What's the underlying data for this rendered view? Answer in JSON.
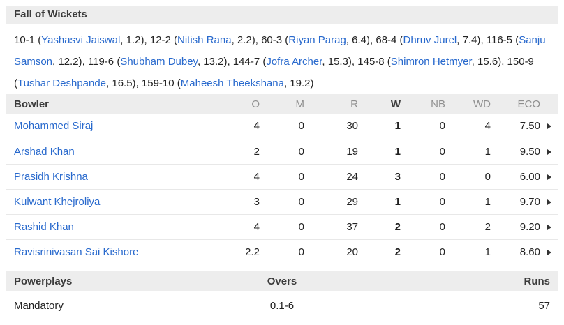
{
  "colors": {
    "link_blue": "#2869cd",
    "section_bar_bg": "#ededed",
    "header_text": "#3b3b3b",
    "muted_column_header": "#8f8f8f",
    "body_text": "#222222",
    "row_separator": "#e8e8e8"
  },
  "icons": {
    "row_expand": "right-triangle-icon"
  },
  "fall_of_wickets": {
    "title": "Fall of Wickets",
    "entries": [
      {
        "score": "10-1",
        "player": "Yashasvi Jaiswal",
        "over": "1.2"
      },
      {
        "score": "12-2",
        "player": "Nitish Rana",
        "over": "2.2"
      },
      {
        "score": "60-3",
        "player": "Riyan Parag",
        "over": "6.4"
      },
      {
        "score": "68-4",
        "player": "Dhruv Jurel",
        "over": "7.4"
      },
      {
        "score": "116-5",
        "player": "Sanju Samson",
        "over": "12.2"
      },
      {
        "score": "119-6",
        "player": "Shubham Dubey",
        "over": "13.2"
      },
      {
        "score": "144-7",
        "player": "Jofra Archer",
        "over": "15.3"
      },
      {
        "score": "145-8",
        "player": "Shimron Hetmyer",
        "over": "15.6"
      },
      {
        "score": "150-9",
        "player": "Tushar Deshpande",
        "over": "16.5"
      },
      {
        "score": "159-10",
        "player": "Maheesh Theekshana",
        "over": "19.2"
      }
    ]
  },
  "bowler_table": {
    "headers": {
      "bowler": "Bowler",
      "o": "O",
      "m": "M",
      "r": "R",
      "w": "W",
      "nb": "NB",
      "wd": "WD",
      "eco": "ECO"
    },
    "rows": [
      {
        "name": "Mohammed Siraj",
        "o": "4",
        "m": "0",
        "r": "30",
        "w": "1",
        "nb": "0",
        "wd": "4",
        "eco": "7.50"
      },
      {
        "name": "Arshad Khan",
        "o": "2",
        "m": "0",
        "r": "19",
        "w": "1",
        "nb": "0",
        "wd": "1",
        "eco": "9.50"
      },
      {
        "name": "Prasidh Krishna",
        "o": "4",
        "m": "0",
        "r": "24",
        "w": "3",
        "nb": "0",
        "wd": "0",
        "eco": "6.00"
      },
      {
        "name": "Kulwant Khejroliya",
        "o": "3",
        "m": "0",
        "r": "29",
        "w": "1",
        "nb": "0",
        "wd": "1",
        "eco": "9.70"
      },
      {
        "name": "Rashid Khan",
        "o": "4",
        "m": "0",
        "r": "37",
        "w": "2",
        "nb": "0",
        "wd": "2",
        "eco": "9.20"
      },
      {
        "name": "Ravisrinivasan Sai Kishore",
        "o": "2.2",
        "m": "0",
        "r": "20",
        "w": "2",
        "nb": "0",
        "wd": "1",
        "eco": "8.60"
      }
    ]
  },
  "powerplays": {
    "headers": {
      "name": "Powerplays",
      "overs": "Overs",
      "runs": "Runs"
    },
    "rows": [
      {
        "name": "Mandatory",
        "overs": "0.1-6",
        "runs": "57"
      }
    ]
  }
}
